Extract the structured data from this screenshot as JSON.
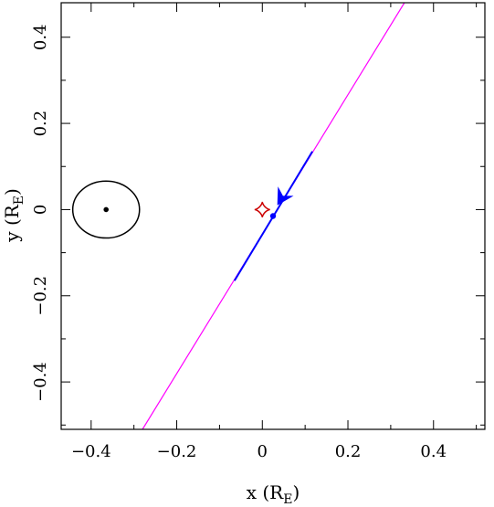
{
  "chart_data": {
    "type": "scatter",
    "title": "",
    "xlabel_main": "x (R",
    "xlabel_sub": "E",
    "xlabel_close": ")",
    "ylabel_main": "y (R",
    "ylabel_sub": "E",
    "ylabel_close": ")",
    "xlim": [
      -0.47,
      0.52
    ],
    "ylim": [
      -0.51,
      0.48
    ],
    "xticks_major": [
      -0.4,
      -0.2,
      0,
      0.2,
      0.4
    ],
    "xtick_labels": [
      "−0.4",
      "−0.2",
      "0",
      "0.2",
      "0.4"
    ],
    "yticks_major": [
      -0.4,
      -0.2,
      0,
      0.2,
      0.4
    ],
    "ytick_labels": [
      "−0.4",
      "−0.2",
      "0",
      "0.2",
      "0.4"
    ],
    "minor_step": 0.1,
    "grid": false,
    "magenta_trajectory": {
      "color": "#ff00ff",
      "points": [
        [
          -0.28,
          -0.51
        ],
        [
          0.332,
          0.48
        ]
      ]
    },
    "blue_segment": {
      "color": "#0000ff",
      "points": [
        [
          -0.065,
          -0.165
        ],
        [
          0.117,
          0.135
        ]
      ]
    },
    "source_point": {
      "x": 0.025,
      "y": -0.015,
      "color": "#0000ff"
    },
    "arrowhead": {
      "tip": [
        0.035,
        0.01
      ],
      "direction_deg": 239,
      "color": "#0000ff"
    },
    "caustic": {
      "x": 0.0,
      "y": 0.0,
      "half_width": 0.018,
      "half_height": 0.018,
      "color": "#cc0000"
    },
    "circle": {
      "cx": -0.365,
      "cy": 0.0,
      "rx": 0.078,
      "ry": 0.066,
      "color": "#000000"
    },
    "lens_dot": {
      "x": -0.365,
      "y": 0.0,
      "color": "#000000"
    }
  }
}
